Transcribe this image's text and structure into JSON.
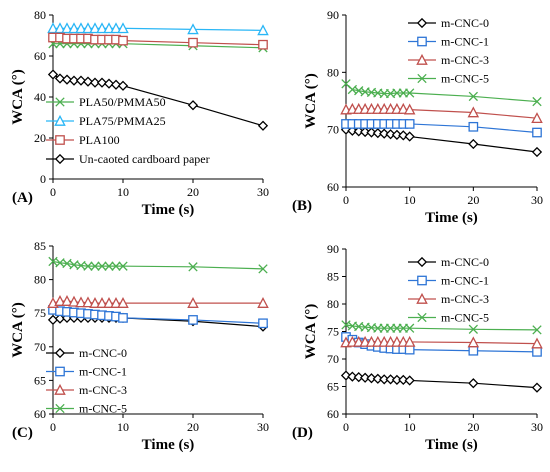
{
  "chart_data": [
    {
      "panel": "(A)",
      "type": "line",
      "xlabel": "Time (s)",
      "ylabel": "WCA (°)",
      "xlim": [
        0,
        30
      ],
      "ylim": [
        0,
        80
      ],
      "xticks": [
        0,
        10,
        20,
        30
      ],
      "yticks": [
        0,
        20,
        40,
        60,
        80
      ],
      "legend_position": "bottom-left",
      "series": [
        {
          "name": "PLA50/PMMA50",
          "marker": "x",
          "color": "#4caf50",
          "x": [
            0,
            1,
            2,
            3,
            4,
            5,
            6,
            7,
            8,
            9,
            10,
            20,
            30
          ],
          "y": [
            66,
            66,
            66,
            66,
            66,
            66,
            66,
            66,
            66,
            66,
            66,
            65,
            64
          ]
        },
        {
          "name": "PLA75/PMMA25",
          "marker": "triangle",
          "color": "#29b6f6",
          "x": [
            0,
            1,
            2,
            3,
            4,
            5,
            6,
            7,
            8,
            9,
            10,
            20,
            30
          ],
          "y": [
            73.5,
            73.5,
            73.5,
            73.5,
            73.5,
            73.5,
            73.5,
            73.5,
            73.5,
            73.5,
            73.5,
            73,
            72.5
          ]
        },
        {
          "name": "PLA100",
          "marker": "square",
          "color": "#c0504d",
          "x": [
            0,
            1,
            2,
            3,
            4,
            5,
            6,
            7,
            8,
            9,
            10,
            20,
            30
          ],
          "y": [
            69,
            69,
            68.5,
            68.5,
            68.5,
            68.5,
            68,
            68,
            68,
            68,
            67.5,
            66.5,
            65.5
          ]
        },
        {
          "name": "Un-caoted cardboard paper",
          "marker": "diamond",
          "color": "#000000",
          "x": [
            0,
            1,
            2,
            3,
            4,
            5,
            6,
            7,
            8,
            9,
            10,
            20,
            30
          ],
          "y": [
            51,
            49,
            48.5,
            48,
            48,
            47.5,
            47,
            47,
            46.5,
            46,
            45.5,
            36,
            26
          ]
        }
      ]
    },
    {
      "panel": "(B)",
      "type": "line",
      "xlabel": "Time (s)",
      "ylabel": "WCA (°)",
      "xlim": [
        0,
        30
      ],
      "ylim": [
        60,
        90
      ],
      "xticks": [
        0,
        10,
        20,
        30
      ],
      "yticks": [
        60,
        70,
        80,
        90
      ],
      "legend_position": "top-right",
      "series": [
        {
          "name": "m-CNC-0",
          "marker": "diamond",
          "color": "#000000",
          "x": [
            0,
            1,
            2,
            3,
            4,
            5,
            6,
            7,
            8,
            9,
            10,
            20,
            30
          ],
          "y": [
            70,
            69.8,
            69.7,
            69.6,
            69.5,
            69.4,
            69.3,
            69.2,
            69.1,
            69,
            68.8,
            67.5,
            66.1
          ]
        },
        {
          "name": "m-CNC-1",
          "marker": "square",
          "color": "#2e75d6",
          "x": [
            0,
            1,
            2,
            3,
            4,
            5,
            6,
            7,
            8,
            9,
            10,
            20,
            30
          ],
          "y": [
            71,
            71,
            71,
            71,
            71,
            71,
            71,
            71,
            71,
            71,
            71,
            70.5,
            69.5
          ]
        },
        {
          "name": "m-CNC-3",
          "marker": "triangle",
          "color": "#c0504d",
          "x": [
            0,
            1,
            2,
            3,
            4,
            5,
            6,
            7,
            8,
            9,
            10,
            20,
            30
          ],
          "y": [
            73.5,
            73.6,
            73.6,
            73.6,
            73.6,
            73.6,
            73.6,
            73.6,
            73.6,
            73.6,
            73.5,
            73,
            72
          ]
        },
        {
          "name": "m-CNC-5",
          "marker": "x",
          "color": "#4caf50",
          "x": [
            0,
            1,
            2,
            3,
            4,
            5,
            6,
            7,
            8,
            9,
            10,
            20,
            30
          ],
          "y": [
            78,
            77,
            76.8,
            76.6,
            76.5,
            76.4,
            76.3,
            76.3,
            76.4,
            76.4,
            76.4,
            75.8,
            74.9
          ]
        }
      ]
    },
    {
      "panel": "(C)",
      "type": "line",
      "xlabel": "Time (s)",
      "ylabel": "WCA (°)",
      "xlim": [
        0,
        30
      ],
      "ylim": [
        60,
        85
      ],
      "xticks": [
        0,
        10,
        20,
        30
      ],
      "yticks": [
        60,
        65,
        70,
        75,
        80,
        85
      ],
      "legend_position": "bottom-left",
      "series": [
        {
          "name": "m-CNC-0",
          "marker": "diamond",
          "color": "#000000",
          "x": [
            0,
            1,
            2,
            3,
            4,
            5,
            6,
            7,
            8,
            9,
            10,
            20,
            30
          ],
          "y": [
            74,
            74.2,
            74.3,
            74.3,
            74.3,
            74.3,
            74.3,
            74.3,
            74.3,
            74.3,
            74.3,
            73.8,
            73
          ]
        },
        {
          "name": "m-CNC-1",
          "marker": "square",
          "color": "#2e75d6",
          "x": [
            0,
            1,
            2,
            3,
            4,
            5,
            6,
            7,
            8,
            9,
            10,
            20,
            30
          ],
          "y": [
            75.5,
            75.3,
            75.2,
            75.1,
            75,
            74.9,
            74.8,
            74.7,
            74.6,
            74.5,
            74.3,
            74,
            73.5
          ]
        },
        {
          "name": "m-CNC-3",
          "marker": "triangle",
          "color": "#c0504d",
          "x": [
            0,
            1,
            2,
            3,
            4,
            5,
            6,
            7,
            8,
            9,
            10,
            20,
            30
          ],
          "y": [
            76.5,
            76.8,
            76.8,
            76.7,
            76.6,
            76.6,
            76.5,
            76.5,
            76.5,
            76.5,
            76.5,
            76.5,
            76.5
          ]
        },
        {
          "name": "m-CNC-5",
          "marker": "x",
          "color": "#4caf50",
          "x": [
            0,
            1,
            2,
            3,
            4,
            5,
            6,
            7,
            8,
            9,
            10,
            20,
            30
          ],
          "y": [
            82.7,
            82.5,
            82.4,
            82.2,
            82.1,
            82,
            82,
            82,
            82,
            82,
            82,
            81.9,
            81.6
          ]
        }
      ]
    },
    {
      "panel": "(D)",
      "type": "line",
      "xlabel": "Time (s)",
      "ylabel": "WCA (°)",
      "xlim": [
        0,
        30
      ],
      "ylim": [
        60,
        90
      ],
      "xticks": [
        0,
        10,
        20,
        30
      ],
      "yticks": [
        60,
        65,
        70,
        75,
        80,
        85,
        90
      ],
      "legend_position": "top-right",
      "series": [
        {
          "name": "m-CNC-0",
          "marker": "diamond",
          "color": "#000000",
          "x": [
            0,
            1,
            2,
            3,
            4,
            5,
            6,
            7,
            8,
            9,
            10,
            20,
            30
          ],
          "y": [
            67,
            66.8,
            66.7,
            66.6,
            66.5,
            66.4,
            66.3,
            66.3,
            66.2,
            66.2,
            66.1,
            65.6,
            64.8
          ]
        },
        {
          "name": "m-CNC-1",
          "marker": "square",
          "color": "#2e75d6",
          "x": [
            0,
            1,
            2,
            3,
            4,
            5,
            6,
            7,
            8,
            9,
            10,
            20,
            30
          ],
          "y": [
            74,
            73.5,
            73,
            72.7,
            72.4,
            72.2,
            72,
            71.9,
            71.8,
            71.8,
            71.7,
            71.5,
            71.3
          ]
        },
        {
          "name": "m-CNC-3",
          "marker": "triangle",
          "color": "#c0504d",
          "x": [
            0,
            1,
            2,
            3,
            4,
            5,
            6,
            7,
            8,
            9,
            10,
            20,
            30
          ],
          "y": [
            73,
            73.1,
            73.1,
            73.1,
            73.1,
            73.1,
            73.1,
            73.1,
            73.1,
            73.1,
            73.1,
            73,
            72.8
          ]
        },
        {
          "name": "m-CNC-5",
          "marker": "x",
          "color": "#4caf50",
          "x": [
            0,
            1,
            2,
            3,
            4,
            5,
            6,
            7,
            8,
            9,
            10,
            20,
            30
          ],
          "y": [
            76.2,
            76,
            75.9,
            75.8,
            75.7,
            75.6,
            75.6,
            75.6,
            75.6,
            75.6,
            75.6,
            75.4,
            75.3
          ]
        }
      ]
    }
  ]
}
